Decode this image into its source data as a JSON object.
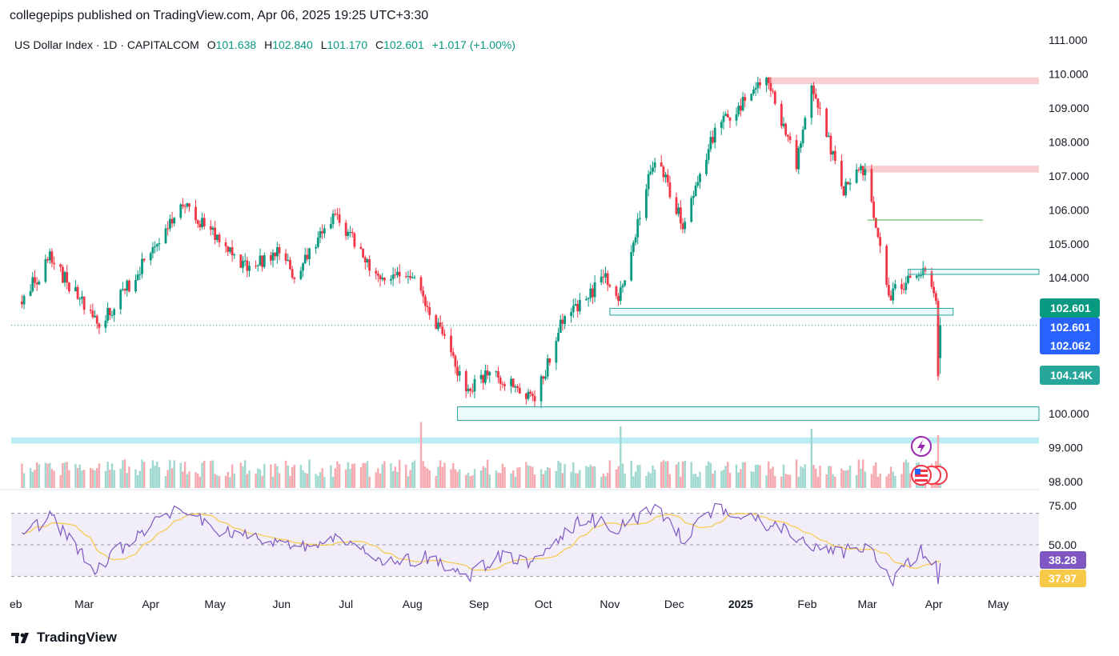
{
  "publisher": {
    "text": "collegepips published on TradingView.com, Apr 06, 2025 19:25 UTC+3:30"
  },
  "header": {
    "symbol": "US Dollar Index · 1D · CAPITALCOM",
    "open_label": "O",
    "open": "101.638",
    "high_label": "H",
    "high": "102.840",
    "low_label": "L",
    "low": "101.170",
    "close_label": "C",
    "close": "102.601",
    "change": "+1.017 (+1.00%)"
  },
  "footer": {
    "brand": "TradingView",
    "brand_icon": "tradingview-logo-icon"
  },
  "colors": {
    "up": "#089981",
    "down": "#f23645",
    "rsi": "#7e57c2",
    "rsi_ma": "#f7c948",
    "zone_red": "#f7c5c9",
    "zone_cyan": "#b2ebf2",
    "zone_teal": "#26a69a",
    "price_tag": "#2962ff"
  },
  "chart_data": {
    "type": "candlestick",
    "title": "US Dollar Index · 1D · CAPITALCOM",
    "price_axis": {
      "ticks": [
        "111.000",
        "110.000",
        "109.000",
        "108.000",
        "107.000",
        "106.000",
        "105.000",
        "104.000",
        "103.000",
        "102.000",
        "101.000",
        "100.000",
        "99.000",
        "98.000"
      ],
      "range": [
        97.8,
        111.4
      ]
    },
    "time_axis": {
      "labels": [
        "eb",
        "Mar",
        "Apr",
        "May",
        "Jun",
        "Jul",
        "Aug",
        "Sep",
        "Oct",
        "Nov",
        "Dec",
        "2025",
        "Feb",
        "Mar",
        "Apr",
        "May"
      ]
    },
    "price_path": [
      {
        "date": "2024-02-01",
        "price": 103.3
      },
      {
        "date": "2024-02-14",
        "price": 104.6
      },
      {
        "date": "2024-03-08",
        "price": 102.6
      },
      {
        "date": "2024-03-20",
        "price": 103.6
      },
      {
        "date": "2024-04-16",
        "price": 106.2
      },
      {
        "date": "2024-05-03",
        "price": 105.1
      },
      {
        "date": "2024-05-15",
        "price": 104.3
      },
      {
        "date": "2024-05-30",
        "price": 104.7
      },
      {
        "date": "2024-06-07",
        "price": 104.1
      },
      {
        "date": "2024-06-26",
        "price": 105.9
      },
      {
        "date": "2024-07-17",
        "price": 103.8
      },
      {
        "date": "2024-08-01",
        "price": 104.2
      },
      {
        "date": "2024-08-13",
        "price": 102.5
      },
      {
        "date": "2024-08-27",
        "price": 100.6
      },
      {
        "date": "2024-09-06",
        "price": 101.3
      },
      {
        "date": "2024-09-27",
        "price": 100.3
      },
      {
        "date": "2024-10-10",
        "price": 102.8
      },
      {
        "date": "2024-10-31",
        "price": 104.0
      },
      {
        "date": "2024-11-05",
        "price": 103.3
      },
      {
        "date": "2024-11-22",
        "price": 107.6
      },
      {
        "date": "2024-12-05",
        "price": 105.6
      },
      {
        "date": "2024-12-20",
        "price": 108.3
      },
      {
        "date": "2025-01-13",
        "price": 109.8
      },
      {
        "date": "2025-01-27",
        "price": 107.3
      },
      {
        "date": "2025-02-03",
        "price": 109.6
      },
      {
        "date": "2025-02-18",
        "price": 106.6
      },
      {
        "date": "2025-02-28",
        "price": 107.3
      },
      {
        "date": "2025-03-11",
        "price": 103.5
      },
      {
        "date": "2025-03-27",
        "price": 104.3
      },
      {
        "date": "2025-04-02",
        "price": 103.4
      },
      {
        "date": "2025-04-03",
        "price": 101.1
      },
      {
        "date": "2025-04-04",
        "price": 102.6
      }
    ],
    "last_ohlc": {
      "open": 101.638,
      "high": 102.84,
      "low": 101.17,
      "close": 102.601
    },
    "zones": [
      {
        "type": "supply",
        "from": "2025-01-13",
        "to": "2025-05-20",
        "low": 109.7,
        "high": 109.9
      },
      {
        "type": "supply",
        "from": "2025-02-28",
        "to": "2025-05-20",
        "low": 107.1,
        "high": 107.3
      },
      {
        "type": "level",
        "from": "2025-03-01",
        "to": "2025-04-24",
        "low": 105.7,
        "high": 105.7
      },
      {
        "type": "demand",
        "from": "2025-03-20",
        "to": "2025-05-20",
        "low": 104.1,
        "high": 104.25
      },
      {
        "type": "demand",
        "from": "2024-11-01",
        "to": "2025-04-10",
        "low": 102.9,
        "high": 103.1
      },
      {
        "type": "demand",
        "from": "2024-08-22",
        "to": "2025-05-20",
        "low": 99.8,
        "high": 100.2
      },
      {
        "type": "band",
        "from": "2024-01-27",
        "to": "2025-05-20",
        "low": 99.12,
        "high": 99.3
      }
    ],
    "dotted_line_price": 102.601,
    "price_tags": [
      {
        "label": "102.601",
        "kind": "last"
      },
      {
        "label": "102.601",
        "kind": "price"
      },
      {
        "label": "102.062",
        "kind": "price"
      },
      {
        "label": "104.14K",
        "kind": "volume"
      }
    ],
    "volume_spikes": [
      {
        "date": "2024-08-05",
        "volume": 150
      },
      {
        "date": "2024-11-06",
        "volume": 140
      },
      {
        "date": "2025-02-03",
        "volume": 135
      },
      {
        "date": "2025-04-03",
        "volume": 120
      }
    ],
    "rsi": {
      "ticks": [
        "75.00",
        "50.00"
      ],
      "upper": 70,
      "lower": 30,
      "value": "38.28",
      "ma_value": "37.97",
      "path": [
        {
          "date": "2024-02-01",
          "value": 55
        },
        {
          "date": "2024-02-14",
          "value": 68
        },
        {
          "date": "2024-03-06",
          "value": 35
        },
        {
          "date": "2024-03-25",
          "value": 55
        },
        {
          "date": "2024-04-15",
          "value": 74
        },
        {
          "date": "2024-05-01",
          "value": 60
        },
        {
          "date": "2024-05-30",
          "value": 50
        },
        {
          "date": "2024-06-20",
          "value": 50
        },
        {
          "date": "2024-06-27",
          "value": 57
        },
        {
          "date": "2024-07-20",
          "value": 38
        },
        {
          "date": "2024-08-08",
          "value": 42
        },
        {
          "date": "2024-08-25",
          "value": 28
        },
        {
          "date": "2024-09-10",
          "value": 43
        },
        {
          "date": "2024-09-26",
          "value": 38
        },
        {
          "date": "2024-10-20",
          "value": 68
        },
        {
          "date": "2024-11-04",
          "value": 60
        },
        {
          "date": "2024-11-22",
          "value": 74
        },
        {
          "date": "2024-12-05",
          "value": 54
        },
        {
          "date": "2024-12-20",
          "value": 73
        },
        {
          "date": "2025-01-20",
          "value": 60
        },
        {
          "date": "2025-02-01",
          "value": 52
        },
        {
          "date": "2025-02-15",
          "value": 44
        },
        {
          "date": "2025-03-01",
          "value": 51
        },
        {
          "date": "2025-03-12",
          "value": 27
        },
        {
          "date": "2025-03-26",
          "value": 47
        },
        {
          "date": "2025-04-02",
          "value": 39
        },
        {
          "date": "2025-04-03",
          "value": 27
        },
        {
          "date": "2025-04-04",
          "value": 38
        }
      ]
    }
  }
}
